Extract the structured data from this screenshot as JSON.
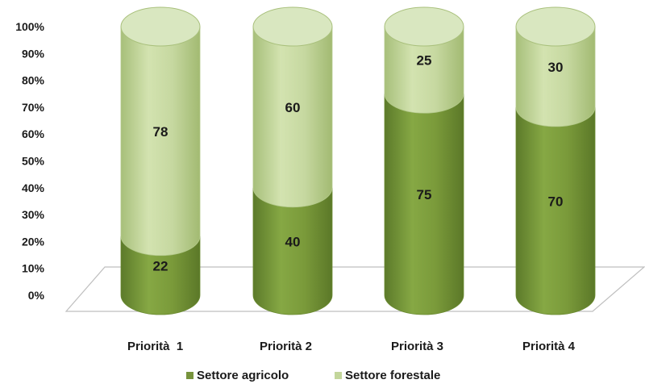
{
  "chart_data": {
    "type": "bar",
    "stacked": true,
    "style": "3d-cylinder",
    "y_axis_format": "percent",
    "ylim": [
      0,
      100
    ],
    "y_ticks": [
      "0%",
      "10%",
      "20%",
      "30%",
      "40%",
      "50%",
      "60%",
      "70%",
      "80%",
      "90%",
      "100%"
    ],
    "categories": [
      "Priorità  1",
      "Priorità 2",
      "Priorità 3",
      "Priorità 4"
    ],
    "series": [
      {
        "name": "Settore agricolo",
        "values": [
          22,
          40,
          75,
          70
        ],
        "color": "#77933c"
      },
      {
        "name": "Settore forestale",
        "values": [
          78,
          60,
          25,
          30
        ],
        "color": "#c3d69b"
      }
    ],
    "legend": "bottom",
    "grid": false
  }
}
